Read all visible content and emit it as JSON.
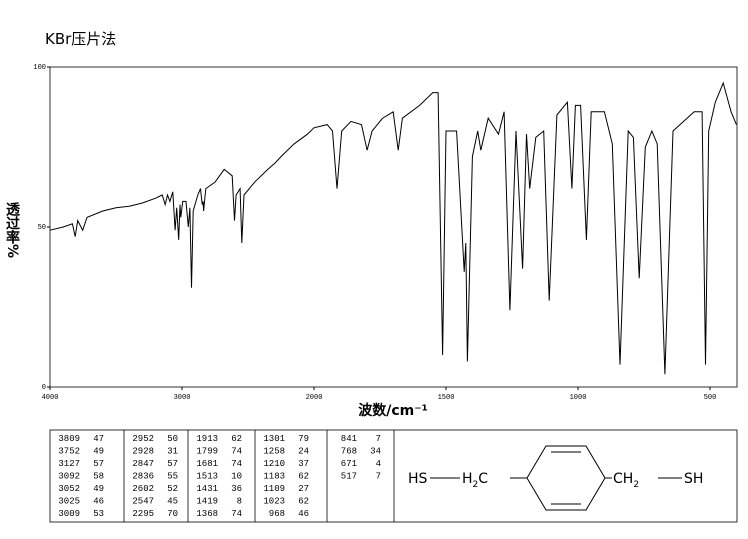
{
  "chart_data": {
    "type": "line",
    "title": "KBr压片法",
    "x_label": "波数/cm⁻¹",
    "y_label": "透过率%",
    "xlim": [
      4000,
      400
    ],
    "ylim": [
      0,
      100
    ],
    "xticks": [
      4000,
      3000,
      2000,
      1500,
      1000,
      500
    ],
    "yticks": [
      0,
      50,
      100
    ],
    "color": "#000000",
    "x": [
      4000,
      3900,
      3830,
      3809,
      3790,
      3752,
      3720,
      3600,
      3500,
      3400,
      3300,
      3200,
      3150,
      3127,
      3110,
      3092,
      3070,
      3052,
      3040,
      3025,
      3015,
      3009,
      2995,
      2970,
      2952,
      2940,
      2928,
      2915,
      2880,
      2860,
      2847,
      2840,
      2836,
      2820,
      2750,
      2680,
      2620,
      2602,
      2590,
      2560,
      2547,
      2530,
      2450,
      2350,
      2295,
      2250,
      2150,
      2050,
      2000,
      1950,
      1930,
      1913,
      1895,
      1860,
      1820,
      1799,
      1780,
      1740,
      1700,
      1681,
      1665,
      1600,
      1550,
      1530,
      1513,
      1500,
      1460,
      1431,
      1425,
      1419,
      1400,
      1380,
      1368,
      1340,
      1301,
      1280,
      1258,
      1235,
      1210,
      1195,
      1183,
      1160,
      1130,
      1109,
      1080,
      1040,
      1023,
      1010,
      990,
      968,
      950,
      900,
      870,
      841,
      810,
      790,
      768,
      745,
      720,
      700,
      671,
      640,
      560,
      530,
      517,
      505,
      480,
      450,
      420,
      400
    ],
    "values": [
      49,
      50,
      51,
      47,
      52,
      49,
      53,
      55,
      56,
      56.5,
      57.5,
      59,
      60,
      57,
      60,
      58,
      61,
      49,
      56,
      46,
      57,
      53,
      58,
      58,
      50,
      56,
      31,
      55,
      60,
      62,
      57,
      58,
      55,
      62,
      64,
      68,
      66,
      52,
      60,
      62,
      45,
      60,
      64,
      68,
      70,
      72,
      76,
      79,
      81,
      82,
      80,
      62,
      80,
      83,
      82,
      74,
      80,
      84,
      86,
      74,
      84,
      88,
      92,
      92,
      10,
      80,
      80,
      36,
      45,
      8,
      72,
      80,
      74,
      84,
      79,
      86,
      24,
      80,
      37,
      79,
      62,
      78,
      80,
      27,
      85,
      89,
      62,
      88,
      88,
      46,
      86,
      86,
      76,
      7,
      80,
      78,
      34,
      75,
      80,
      76,
      4,
      80,
      86,
      86,
      7,
      80,
      89,
      95,
      86,
      82
    ]
  },
  "peak_table": [
    [
      [
        3809,
        47
      ],
      [
        3752,
        49
      ],
      [
        3127,
        57
      ],
      [
        3092,
        58
      ],
      [
        3052,
        49
      ],
      [
        3025,
        46
      ],
      [
        3009,
        53
      ]
    ],
    [
      [
        2952,
        50
      ],
      [
        2928,
        31
      ],
      [
        2847,
        57
      ],
      [
        2836,
        55
      ],
      [
        2602,
        52
      ],
      [
        2547,
        45
      ],
      [
        2295,
        70
      ]
    ],
    [
      [
        1913,
        62
      ],
      [
        1799,
        74
      ],
      [
        1681,
        74
      ],
      [
        1513,
        10
      ],
      [
        1431,
        36
      ],
      [
        1419,
        8
      ],
      [
        1368,
        74
      ]
    ],
    [
      [
        1301,
        79
      ],
      [
        1258,
        24
      ],
      [
        1210,
        37
      ],
      [
        1183,
        62
      ],
      [
        1109,
        27
      ],
      [
        1023,
        62
      ],
      [
        968,
        46
      ]
    ],
    [
      [
        841,
        7
      ],
      [
        768,
        34
      ],
      [
        671,
        4
      ],
      [
        517,
        7
      ]
    ]
  ],
  "structure": {
    "left": "HS",
    "h2c": {
      "h": "H",
      "sub": "2",
      "c": "C"
    },
    "ch2": {
      "ch": "CH",
      "sub": "2"
    },
    "right": "SH"
  }
}
